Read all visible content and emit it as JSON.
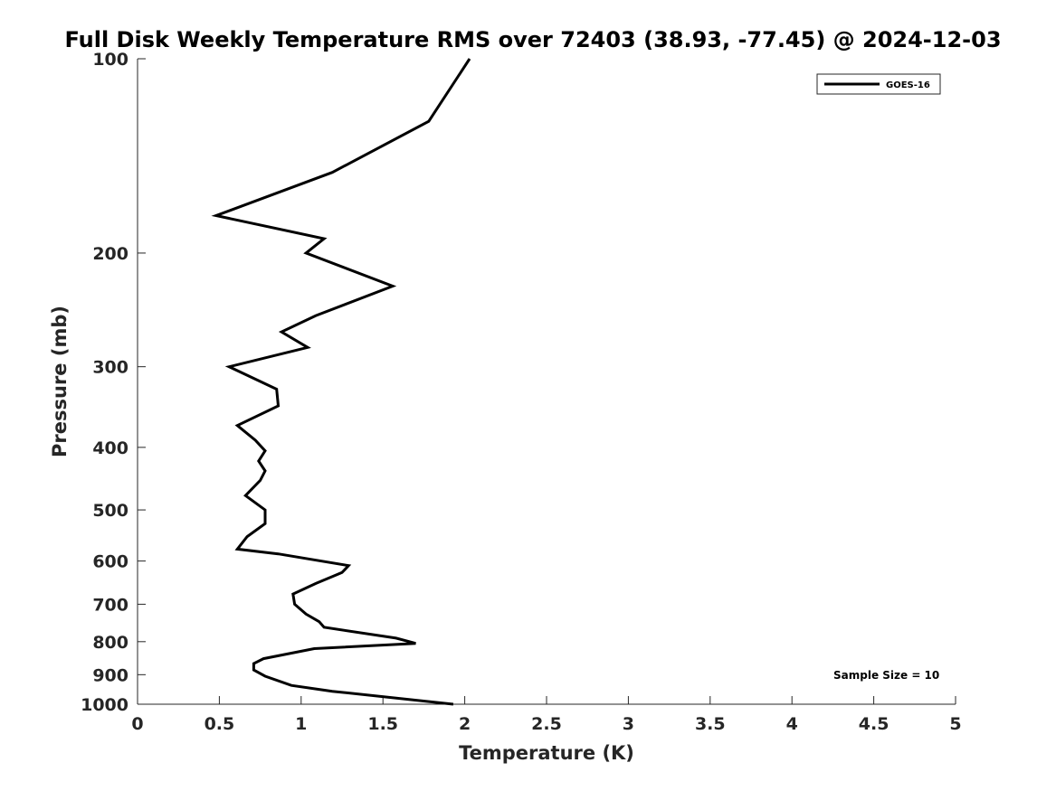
{
  "chart_data": {
    "type": "line",
    "title": "Full Disk Weekly Temperature RMS over 72403 (38.93, -77.45) @ 2024-12-03",
    "xlabel": "Temperature (K)",
    "ylabel": "Pressure (mb)",
    "xlim": [
      0,
      5
    ],
    "ylim": [
      100,
      1000
    ],
    "y_scale": "log",
    "y_reversed": true,
    "xticks": [
      "0",
      "0.5",
      "1",
      "1.5",
      "2",
      "2.5",
      "3",
      "3.5",
      "4",
      "4.5",
      "5"
    ],
    "yticks": [
      "100",
      "200",
      "300",
      "400",
      "500",
      "600",
      "700",
      "800",
      "900",
      "1000"
    ],
    "grid": false,
    "legend": {
      "placement": "top-right",
      "entries": [
        "GOES-16"
      ]
    },
    "annotation": "Sample Size = 10",
    "series": [
      {
        "name": "GOES-16",
        "color": "#000000",
        "points": [
          [
            2.03,
            100
          ],
          [
            1.78,
            125
          ],
          [
            1.19,
            150
          ],
          [
            0.48,
            175
          ],
          [
            1.14,
            190
          ],
          [
            1.03,
            200
          ],
          [
            1.56,
            225
          ],
          [
            1.09,
            250
          ],
          [
            0.88,
            265
          ],
          [
            1.04,
            280
          ],
          [
            0.56,
            300
          ],
          [
            0.85,
            325
          ],
          [
            0.86,
            345
          ],
          [
            0.61,
            370
          ],
          [
            0.72,
            390
          ],
          [
            0.78,
            405
          ],
          [
            0.74,
            420
          ],
          [
            0.78,
            435
          ],
          [
            0.75,
            450
          ],
          [
            0.66,
            475
          ],
          [
            0.78,
            500
          ],
          [
            0.78,
            525
          ],
          [
            0.67,
            550
          ],
          [
            0.61,
            575
          ],
          [
            0.86,
            585
          ],
          [
            1.29,
            610
          ],
          [
            1.25,
            625
          ],
          [
            1.09,
            650
          ],
          [
            0.95,
            675
          ],
          [
            0.96,
            700
          ],
          [
            1.03,
            725
          ],
          [
            1.11,
            745
          ],
          [
            1.14,
            760
          ],
          [
            1.58,
            790
          ],
          [
            1.7,
            805
          ],
          [
            1.08,
            820
          ],
          [
            0.77,
            850
          ],
          [
            0.71,
            865
          ],
          [
            0.71,
            885
          ],
          [
            0.78,
            905
          ],
          [
            0.94,
            935
          ],
          [
            1.19,
            955
          ],
          [
            1.93,
            1000
          ]
        ]
      }
    ]
  }
}
